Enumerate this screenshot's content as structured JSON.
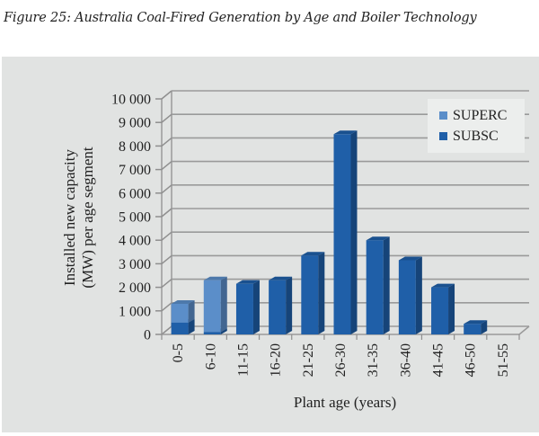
{
  "figure_caption": "Figure 25: Australia Coal-Fired Generation by Age and Boiler Technology",
  "chart_data": {
    "type": "bar",
    "stacked": true,
    "three_d": true,
    "title": "",
    "xlabel": "Plant age (years)",
    "ylabel": "Installed new capacity (MW) per age segment",
    "ylabel_lines": [
      "Installed new capacity",
      "(MW) per age segment"
    ],
    "ylim": [
      0,
      10000
    ],
    "yticks": [
      0,
      1000,
      2000,
      3000,
      4000,
      5000,
      6000,
      7000,
      8000,
      9000,
      10000
    ],
    "ytick_labels": [
      "0",
      "1 000",
      "2 000",
      "3 000",
      "4 000",
      "5 000",
      "6 000",
      "7 000",
      "8 000",
      "9 000",
      "10 000"
    ],
    "grid": true,
    "legend_position": "top-right",
    "categories": [
      "0-5",
      "6-10",
      "11-15",
      "16-20",
      "21-25",
      "26-30",
      "31-35",
      "36-40",
      "41-45",
      "46-50",
      "51-55"
    ],
    "series": [
      {
        "name": "SUBSC",
        "color": "#1f5fa8",
        "values": [
          500,
          100,
          2150,
          2300,
          3350,
          8500,
          4000,
          3150,
          2000,
          450,
          0
        ]
      },
      {
        "name": "SUPERC",
        "color": "#5b8ec9",
        "values": [
          800,
          2200,
          0,
          0,
          0,
          0,
          0,
          0,
          0,
          0,
          0
        ]
      }
    ],
    "legend": [
      "SUPERC",
      "SUBSC"
    ]
  }
}
